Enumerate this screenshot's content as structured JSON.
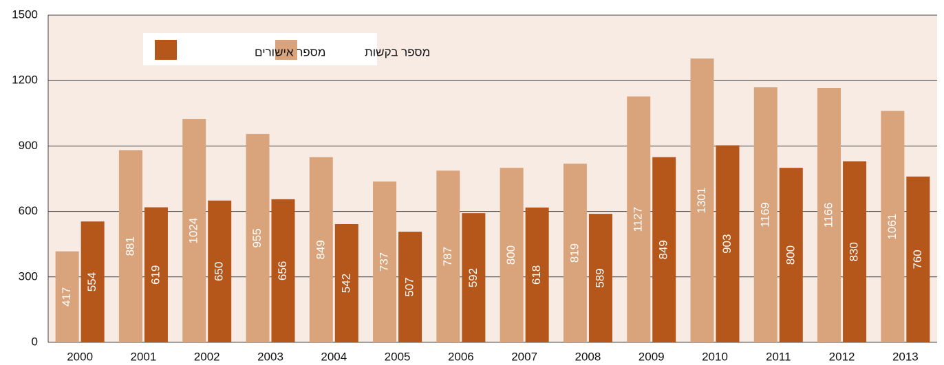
{
  "chart_data": {
    "type": "bar",
    "categories": [
      "2000",
      "2001",
      "2002",
      "2003",
      "2004",
      "2005",
      "2006",
      "2007",
      "2008",
      "2009",
      "2010",
      "2011",
      "2012",
      "2013"
    ],
    "series": [
      {
        "name": "מספר בקשות",
        "color": "#d9a47b",
        "values": [
          417,
          881,
          1024,
          955,
          849,
          737,
          787,
          800,
          819,
          1127,
          1301,
          1169,
          1166,
          1061
        ]
      },
      {
        "name": "מספר אישורים",
        "color": "#b5561b",
        "values": [
          554,
          619,
          650,
          656,
          542,
          507,
          592,
          618,
          589,
          849,
          903,
          800,
          830,
          760
        ]
      }
    ],
    "ylim": [
      0,
      1500
    ],
    "yticks": [
      0,
      300,
      600,
      900,
      1200,
      1500
    ],
    "grid": true,
    "legend": "top-left"
  }
}
